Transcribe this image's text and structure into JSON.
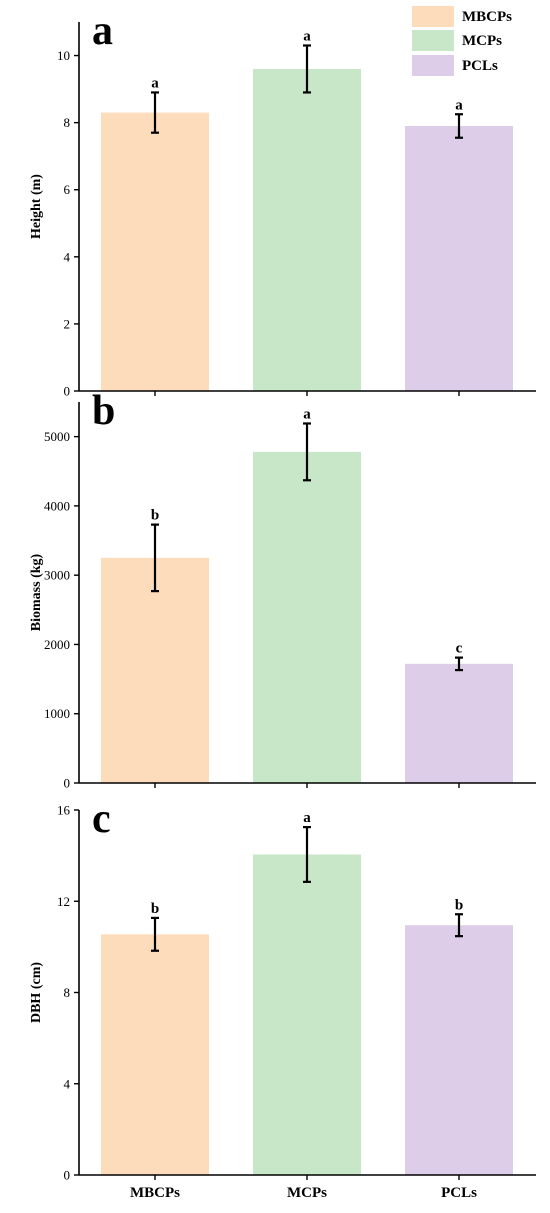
{
  "legend": {
    "placement": "top-right",
    "entries": [
      {
        "label": "MBCPs",
        "color": "#fddcbc"
      },
      {
        "label": "MCPs",
        "color": "#c7e7c8"
      },
      {
        "label": "PCLs",
        "color": "#ddcde8"
      }
    ]
  },
  "chart_data": [
    {
      "type": "bar",
      "panel": "a",
      "categories": [
        "MBCPs",
        "MCPs",
        "PCLs"
      ],
      "values": [
        8.3,
        9.6,
        7.9
      ],
      "errors": [
        0.6,
        0.7,
        0.35
      ],
      "significance": [
        "a",
        "a",
        "a"
      ],
      "ylabel": "Height (m)",
      "ylim": [
        0,
        11
      ],
      "yticks": [
        0,
        2,
        4,
        6,
        8,
        10
      ],
      "ytick_labels": [
        "0",
        "2",
        "4",
        "6",
        "8",
        "10"
      ],
      "grid": false
    },
    {
      "type": "bar",
      "panel": "b",
      "categories": [
        "MBCPs",
        "MCPs",
        "PCLs"
      ],
      "values": [
        3250,
        4780,
        1720
      ],
      "errors": [
        480,
        410,
        90
      ],
      "significance": [
        "b",
        "a",
        "c"
      ],
      "ylabel": "Biomass (kg)",
      "ylim": [
        0,
        5500
      ],
      "yticks": [
        0,
        1000,
        2000,
        3000,
        4000,
        5000
      ],
      "ytick_labels": [
        "0",
        "1000",
        "2000",
        "3000",
        "4000",
        "5000"
      ],
      "grid": false
    },
    {
      "type": "bar",
      "panel": "c",
      "categories": [
        "MBCPs",
        "MCPs",
        "PCLs"
      ],
      "values": [
        10.55,
        14.05,
        10.95
      ],
      "errors": [
        0.72,
        1.2,
        0.48
      ],
      "significance": [
        "b",
        "a",
        "b"
      ],
      "ylabel": "DBH (cm)",
      "ylim": [
        0,
        16
      ],
      "yticks": [
        0,
        4,
        8,
        12,
        16
      ],
      "ytick_labels": [
        "0",
        "4",
        "8",
        "12",
        "16"
      ],
      "grid": false,
      "xtick_labels": [
        "MBCPs",
        "MCPs",
        "PCLs"
      ]
    }
  ]
}
